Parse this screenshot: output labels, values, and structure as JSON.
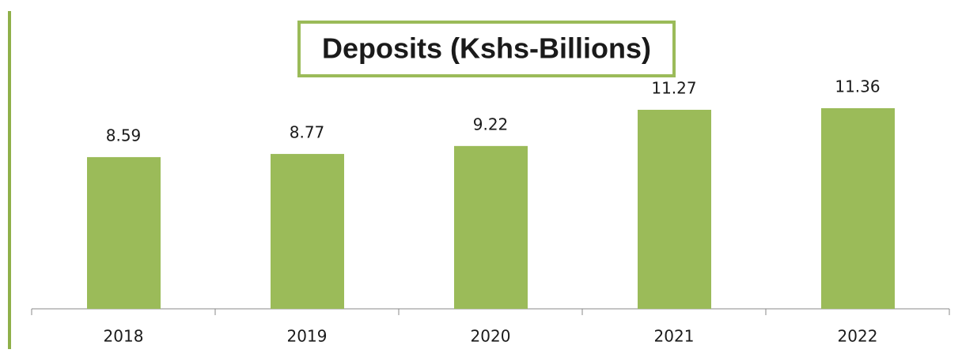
{
  "chart_data": {
    "type": "bar",
    "title": "Deposits (Kshs-Billions)",
    "categories": [
      "2018",
      "2019",
      "2020",
      "2021",
      "2022"
    ],
    "values": [
      8.59,
      8.77,
      9.22,
      11.27,
      11.36
    ],
    "color": "#9bbb59"
  }
}
